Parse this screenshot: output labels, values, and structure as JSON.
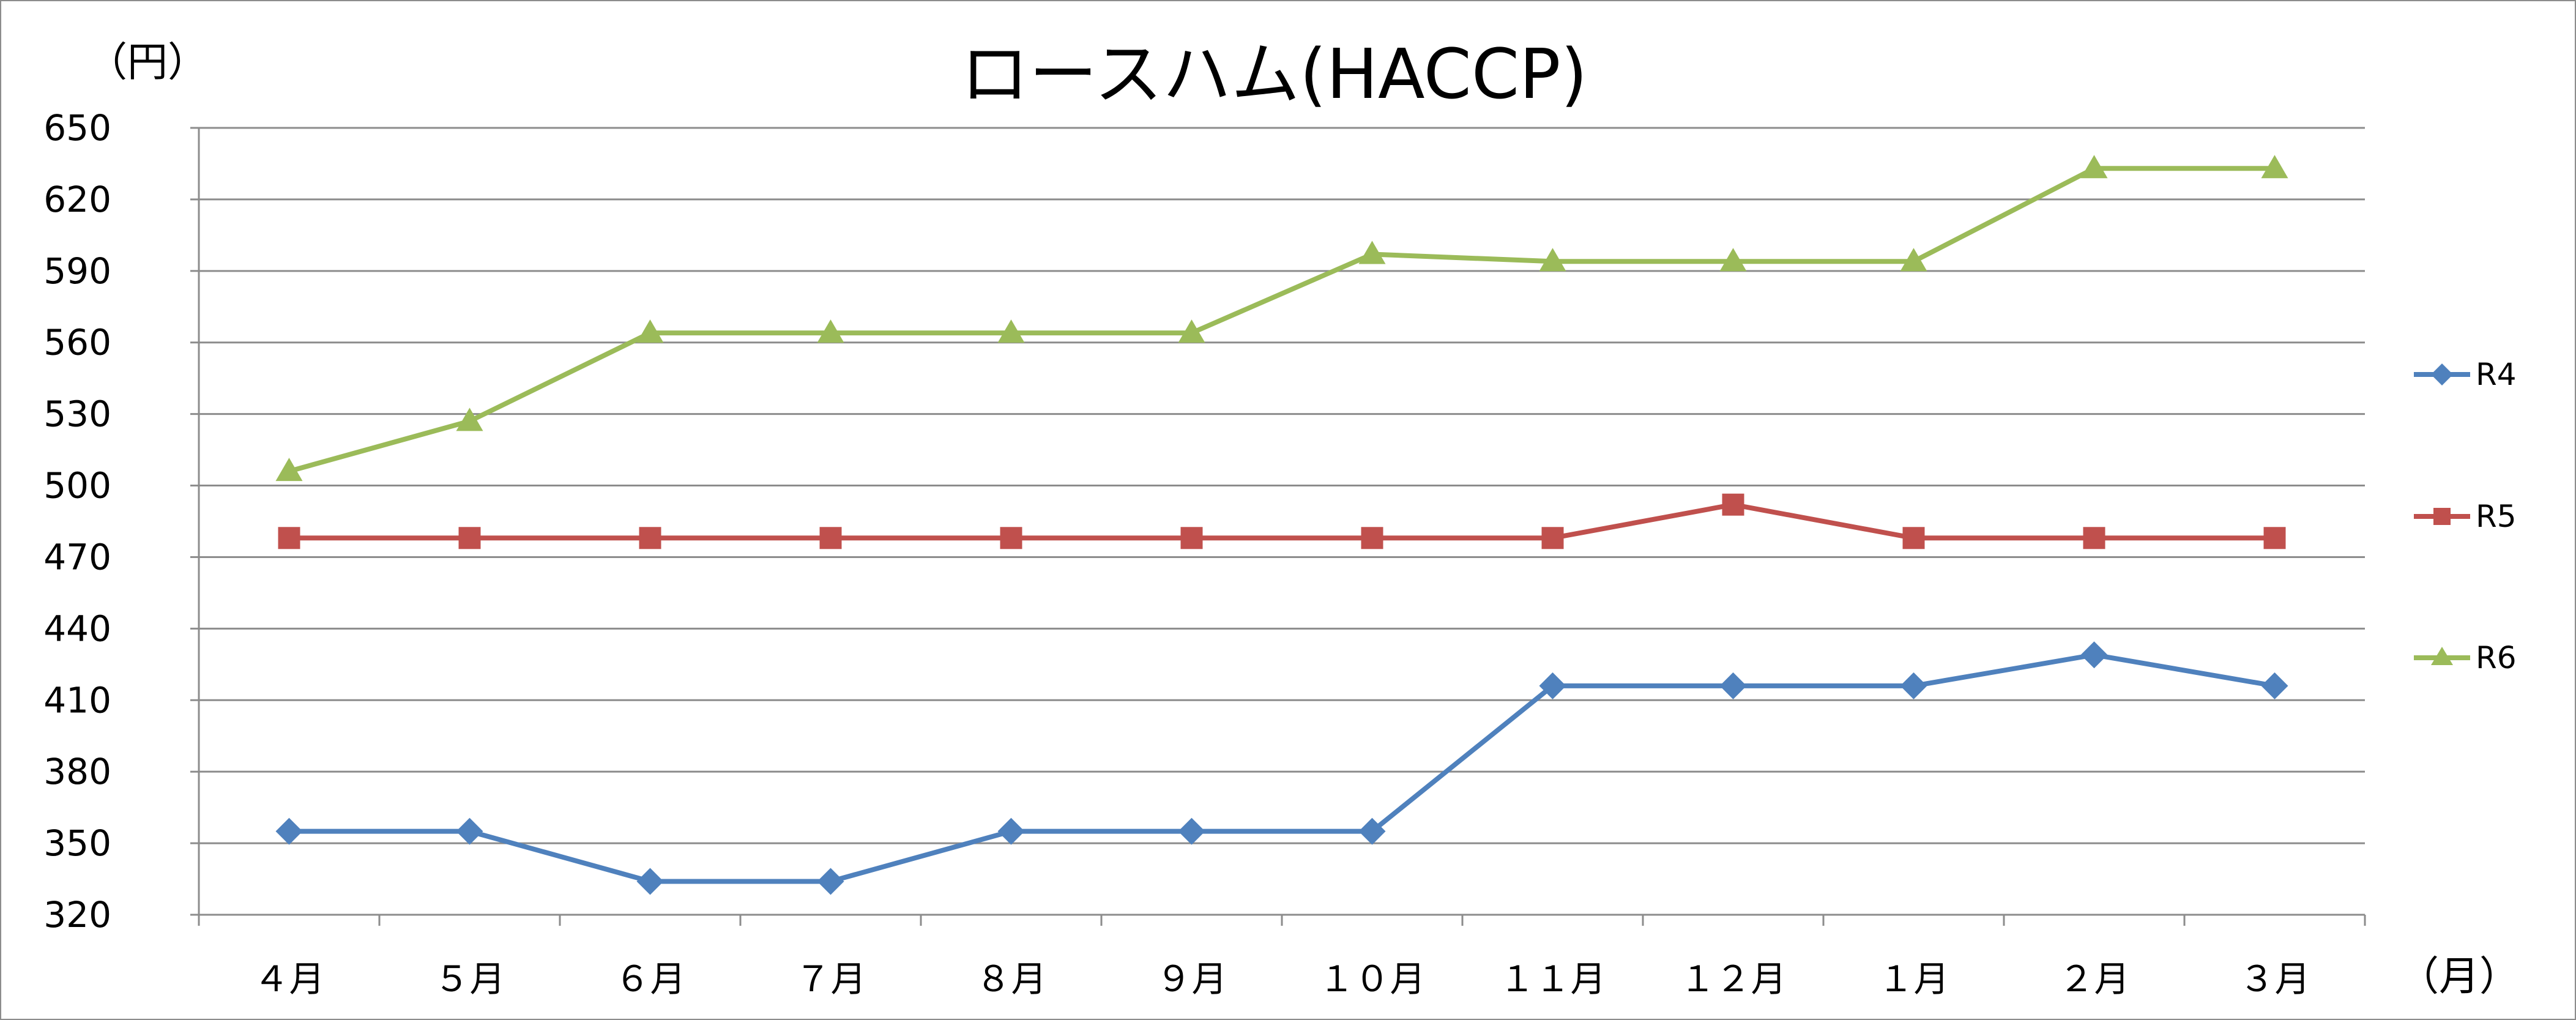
{
  "chart_data": {
    "type": "line",
    "title": "ロースハム(HACCP)",
    "ylabel": "（円）",
    "xlabel": "（月）",
    "ylim": [
      320,
      650
    ],
    "y_ticks": [
      320,
      350,
      380,
      410,
      440,
      470,
      500,
      530,
      560,
      590,
      620,
      650
    ],
    "grid": true,
    "legend_position": "right",
    "categories": [
      "４月",
      "５月",
      "６月",
      "７月",
      "８月",
      "９月",
      "１０月",
      "１１月",
      "１２月",
      "１月",
      "２月",
      "３月"
    ],
    "series": [
      {
        "name": "R4",
        "color": "#4F81BD",
        "marker": "diamond",
        "values": [
          355,
          355,
          334,
          334,
          355,
          355,
          355,
          416,
          416,
          416,
          429,
          416
        ]
      },
      {
        "name": "R5",
        "color": "#C0504D",
        "marker": "square",
        "values": [
          478,
          478,
          478,
          478,
          478,
          478,
          478,
          478,
          492,
          478,
          478,
          478
        ]
      },
      {
        "name": "R6",
        "color": "#9BBB59",
        "marker": "triangle",
        "values": [
          506,
          527,
          564,
          564,
          564,
          564,
          597,
          594,
          594,
          594,
          633,
          633
        ]
      }
    ]
  }
}
